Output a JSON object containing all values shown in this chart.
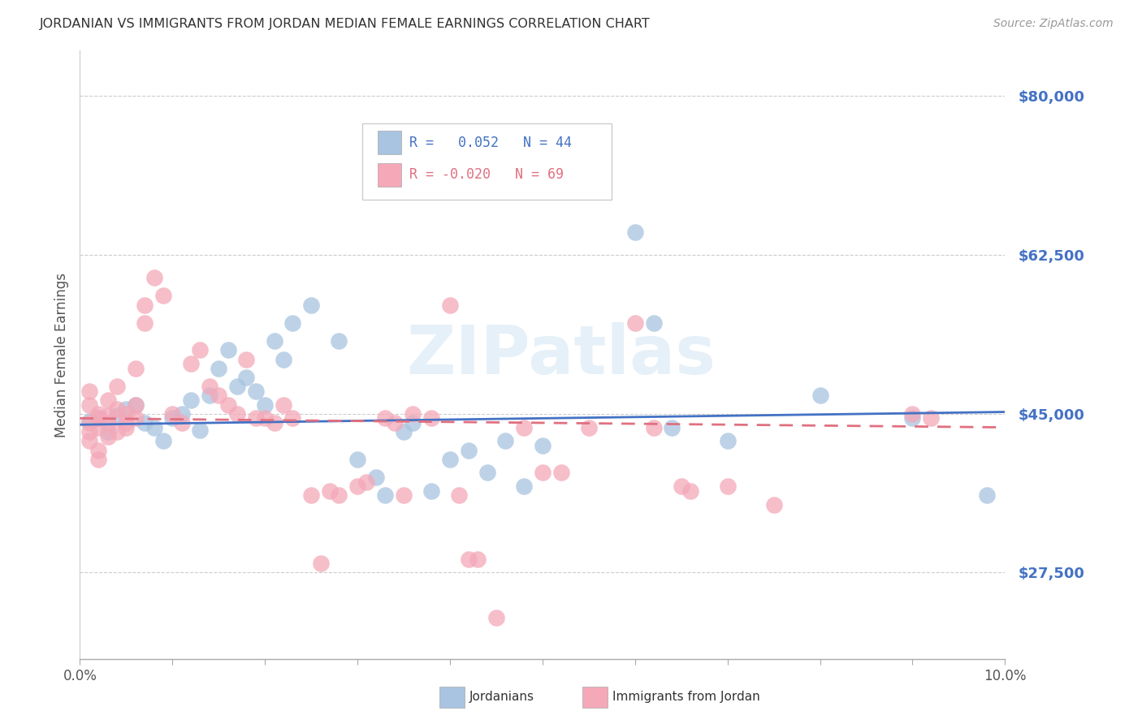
{
  "title": "JORDANIAN VS IMMIGRANTS FROM JORDAN MEDIAN FEMALE EARNINGS CORRELATION CHART",
  "source": "Source: ZipAtlas.com",
  "ylabel": "Median Female Earnings",
  "y_ticks": [
    27500,
    45000,
    62500,
    80000
  ],
  "y_tick_labels": [
    "$27,500",
    "$45,000",
    "$62,500",
    "$80,000"
  ],
  "xlim": [
    0.0,
    0.1
  ],
  "ylim": [
    18000,
    85000
  ],
  "blue_R": 0.052,
  "blue_N": 44,
  "pink_R": -0.02,
  "pink_N": 69,
  "blue_color": "#a8c4e0",
  "pink_color": "#f4a8b8",
  "blue_line_color": "#4472c4",
  "pink_line_color": "#e07080",
  "tick_color": "#4472c4",
  "watermark": "ZIPatlas",
  "blue_line_y0": 43800,
  "blue_line_y1": 45200,
  "pink_line_y0": 44500,
  "pink_line_y1": 43500,
  "blue_scatter": [
    [
      0.001,
      44200
    ],
    [
      0.002,
      44500
    ],
    [
      0.003,
      43000
    ],
    [
      0.004,
      44800
    ],
    [
      0.005,
      45500
    ],
    [
      0.006,
      46000
    ],
    [
      0.007,
      44000
    ],
    [
      0.008,
      43500
    ],
    [
      0.009,
      42000
    ],
    [
      0.01,
      44500
    ],
    [
      0.011,
      45000
    ],
    [
      0.012,
      46500
    ],
    [
      0.013,
      43200
    ],
    [
      0.014,
      47000
    ],
    [
      0.015,
      50000
    ],
    [
      0.016,
      52000
    ],
    [
      0.017,
      48000
    ],
    [
      0.018,
      49000
    ],
    [
      0.019,
      47500
    ],
    [
      0.02,
      46000
    ],
    [
      0.021,
      53000
    ],
    [
      0.022,
      51000
    ],
    [
      0.023,
      55000
    ],
    [
      0.025,
      57000
    ],
    [
      0.028,
      53000
    ],
    [
      0.03,
      40000
    ],
    [
      0.032,
      38000
    ],
    [
      0.033,
      36000
    ],
    [
      0.035,
      43000
    ],
    [
      0.036,
      44000
    ],
    [
      0.038,
      36500
    ],
    [
      0.04,
      40000
    ],
    [
      0.042,
      41000
    ],
    [
      0.044,
      38500
    ],
    [
      0.046,
      42000
    ],
    [
      0.048,
      37000
    ],
    [
      0.05,
      41500
    ],
    [
      0.06,
      65000
    ],
    [
      0.062,
      55000
    ],
    [
      0.064,
      43500
    ],
    [
      0.07,
      42000
    ],
    [
      0.08,
      47000
    ],
    [
      0.09,
      44500
    ],
    [
      0.098,
      36000
    ]
  ],
  "pink_scatter": [
    [
      0.001,
      44000
    ],
    [
      0.001,
      43000
    ],
    [
      0.001,
      46000
    ],
    [
      0.001,
      47500
    ],
    [
      0.001,
      42000
    ],
    [
      0.002,
      45000
    ],
    [
      0.002,
      43500
    ],
    [
      0.002,
      44500
    ],
    [
      0.002,
      41000
    ],
    [
      0.002,
      40000
    ],
    [
      0.003,
      44000
    ],
    [
      0.003,
      46500
    ],
    [
      0.003,
      42500
    ],
    [
      0.003,
      44800
    ],
    [
      0.004,
      45500
    ],
    [
      0.004,
      43000
    ],
    [
      0.004,
      48000
    ],
    [
      0.005,
      45000
    ],
    [
      0.005,
      44000
    ],
    [
      0.005,
      43500
    ],
    [
      0.006,
      46000
    ],
    [
      0.006,
      44500
    ],
    [
      0.006,
      50000
    ],
    [
      0.007,
      55000
    ],
    [
      0.007,
      57000
    ],
    [
      0.008,
      60000
    ],
    [
      0.009,
      58000
    ],
    [
      0.01,
      45000
    ],
    [
      0.011,
      44000
    ],
    [
      0.012,
      50500
    ],
    [
      0.013,
      52000
    ],
    [
      0.014,
      48000
    ],
    [
      0.015,
      47000
    ],
    [
      0.016,
      46000
    ],
    [
      0.017,
      45000
    ],
    [
      0.018,
      51000
    ],
    [
      0.019,
      44500
    ],
    [
      0.02,
      44500
    ],
    [
      0.021,
      44000
    ],
    [
      0.022,
      46000
    ],
    [
      0.023,
      44500
    ],
    [
      0.025,
      36000
    ],
    [
      0.026,
      28500
    ],
    [
      0.027,
      36500
    ],
    [
      0.028,
      36000
    ],
    [
      0.03,
      37000
    ],
    [
      0.031,
      37500
    ],
    [
      0.033,
      44500
    ],
    [
      0.034,
      44000
    ],
    [
      0.035,
      36000
    ],
    [
      0.036,
      45000
    ],
    [
      0.038,
      44500
    ],
    [
      0.04,
      57000
    ],
    [
      0.041,
      36000
    ],
    [
      0.042,
      29000
    ],
    [
      0.043,
      29000
    ],
    [
      0.045,
      22500
    ],
    [
      0.048,
      43500
    ],
    [
      0.05,
      38500
    ],
    [
      0.052,
      38500
    ],
    [
      0.055,
      43500
    ],
    [
      0.06,
      55000
    ],
    [
      0.062,
      43500
    ],
    [
      0.065,
      37000
    ],
    [
      0.066,
      36500
    ],
    [
      0.07,
      37000
    ],
    [
      0.075,
      35000
    ],
    [
      0.09,
      45000
    ],
    [
      0.092,
      44500
    ]
  ]
}
